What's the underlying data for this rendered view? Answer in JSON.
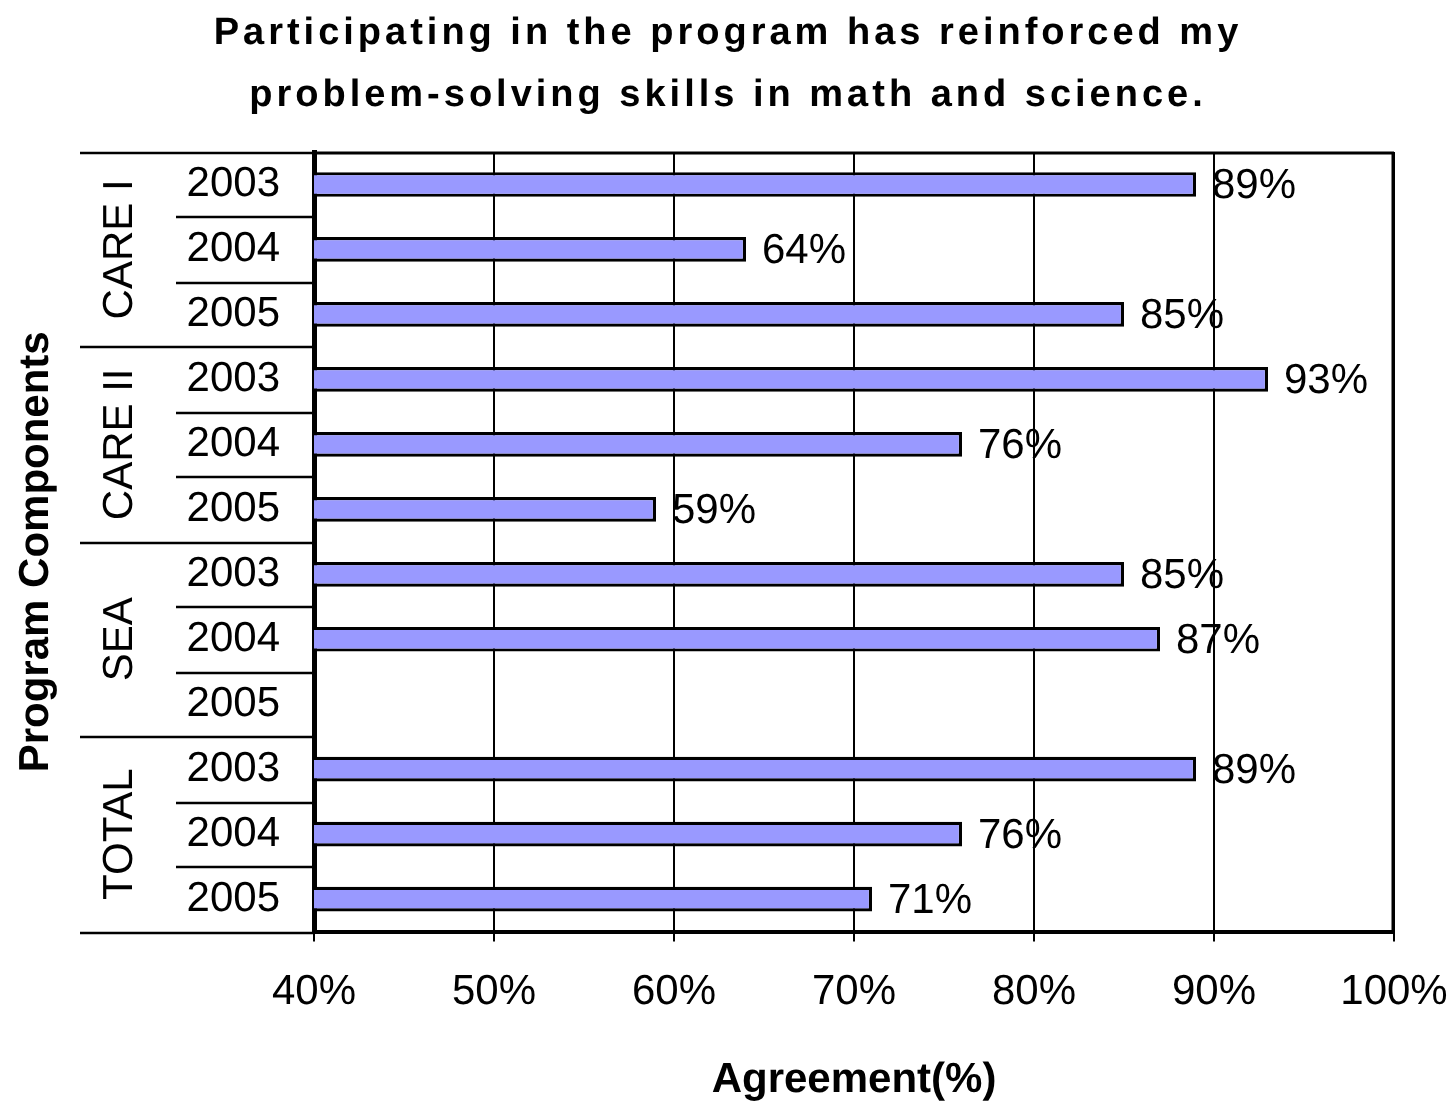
{
  "chart_data": {
    "type": "bar",
    "orientation": "horizontal",
    "title": "Participating in the program has reinforced my problem-solving skills in math and science.",
    "xlabel": "Agreement(%)",
    "ylabel": "Program Components",
    "categories": [
      "2003",
      "2004",
      "2005",
      "2003",
      "2004",
      "2005",
      "2003",
      "2004",
      "2005",
      "2003",
      "2004",
      "2005"
    ],
    "values": [
      89,
      64,
      85,
      93,
      76,
      59,
      85,
      87,
      null,
      89,
      76,
      71
    ],
    "value_labels": [
      "89%",
      "64%",
      "85%",
      "93%",
      "76%",
      "59%",
      "85%",
      "87%",
      null,
      "89%",
      "76%",
      "71%"
    ],
    "color": "#9999ff",
    "xlim": [
      40,
      100
    ],
    "xticks": [
      {
        "value": 40,
        "label": "40%"
      },
      {
        "value": 50,
        "label": "50%"
      },
      {
        "value": 60,
        "label": "60%"
      },
      {
        "value": 70,
        "label": "70%"
      },
      {
        "value": 80,
        "label": "80%"
      },
      {
        "value": 90,
        "label": "90%"
      },
      {
        "value": 100,
        "label": "100%"
      }
    ],
    "grid": "x",
    "annotations": [
      "CARE I",
      "CARE II",
      "SEA",
      "TOTAL"
    ]
  }
}
